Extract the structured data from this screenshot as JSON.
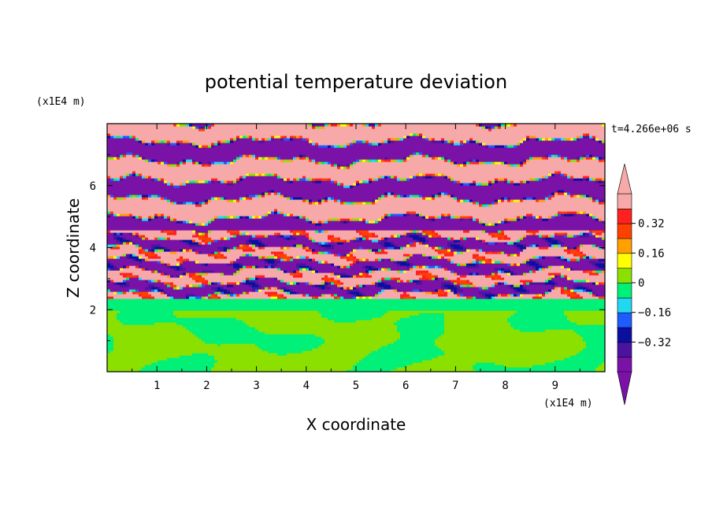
{
  "chart_data": {
    "type": "heatmap",
    "title": "potential temperature deviation",
    "xlabel": "X coordinate",
    "ylabel": "Z coordinate",
    "x_unit": "(x1E4 m)",
    "y_unit": "(x1E4 m)",
    "time_label": "t=4.266e+06 s",
    "xlim": [
      0,
      10
    ],
    "ylim": [
      0,
      8
    ],
    "x_ticks": [
      1,
      2,
      3,
      4,
      5,
      6,
      7,
      8,
      9
    ],
    "y_ticks": [
      2,
      4,
      6
    ],
    "colorbar": {
      "levels": [
        -0.48,
        -0.4,
        -0.32,
        -0.24,
        -0.16,
        -0.08,
        0,
        0.08,
        0.16,
        0.24,
        0.32,
        0.4,
        0.48
      ],
      "tick_labels": [
        "0.32",
        "0.16",
        "0",
        "−0.16",
        "−0.32"
      ],
      "tick_values": [
        0.32,
        0.16,
        0,
        -0.16,
        -0.32
      ],
      "colors": [
        "#7a12a8",
        "#4a14a0",
        "#0a0fa0",
        "#1e5cff",
        "#22d8f0",
        "#00f078",
        "#8ce000",
        "#ffff00",
        "#ffa000",
        "#ff4000",
        "#ff2020",
        "#f7a8a8"
      ],
      "extend": "both"
    },
    "bands": [
      {
        "z": [
          0.0,
          2.0
        ],
        "value": 0.02,
        "note_color": "#8ce000"
      },
      {
        "z": [
          2.0,
          2.4
        ],
        "value": -0.02
      },
      {
        "z": [
          2.4,
          8.0
        ],
        "value_alternating": [
          0.48,
          -0.48
        ]
      }
    ]
  }
}
